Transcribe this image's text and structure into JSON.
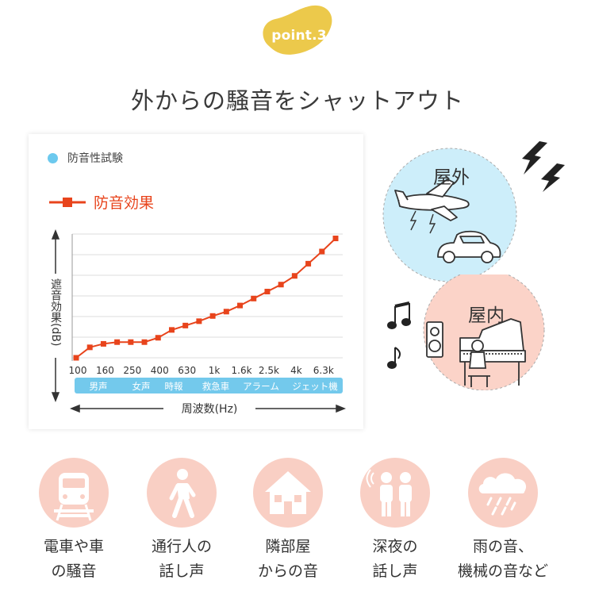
{
  "badge": {
    "text": "point.3",
    "color": "#ecc94b"
  },
  "headline": "外からの騒音をシャットアウト",
  "chart_data": {
    "type": "line",
    "legend_test": "防音性試験",
    "series": [
      {
        "name": "防音効果",
        "color": "#e8441c",
        "values": [
          0,
          12,
          16,
          18,
          18,
          18,
          23,
          32,
          37,
          42,
          48,
          53,
          60,
          68,
          76,
          84,
          94,
          108,
          122,
          137
        ]
      }
    ],
    "x_tick_labels": [
      "100",
      "160",
      "250",
      "400",
      "630",
      "1k",
      "1.6k",
      "2.5k",
      "4k",
      "6.3k"
    ],
    "sound_examples": [
      "男声",
      "女声",
      "時報",
      "救急車",
      "アラーム",
      "ジェット機"
    ],
    "xlabel": "周波数(Hz)",
    "ylabel": "遮音効果(dB)",
    "grid": true
  },
  "outdoor": {
    "label": "屋外",
    "color": "#cdeefa"
  },
  "indoor": {
    "label": "屋内",
    "color": "#fbd3c8"
  },
  "noise_sources": [
    {
      "icon": "train-icon",
      "line1": "電車や車",
      "line2": "の騒音"
    },
    {
      "icon": "pedestrian-icon",
      "line1": "通行人の",
      "line2": "話し声"
    },
    {
      "icon": "house-icon",
      "line1": "隣部屋",
      "line2": "からの音"
    },
    {
      "icon": "people-talking-icon",
      "line1": "深夜の",
      "line2": "話し声"
    },
    {
      "icon": "rain-cloud-icon",
      "line1": "雨の音、",
      "line2": "機械の音など"
    }
  ]
}
